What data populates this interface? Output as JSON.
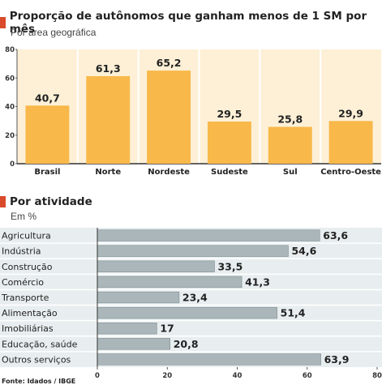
{
  "chart_data": [
    {
      "type": "bar",
      "title": "Proporção de autônomos que ganham menos de 1 SM por mês",
      "subtitle": "Por área geográfica",
      "categories": [
        "Brasil",
        "Norte",
        "Nordeste",
        "Sudeste",
        "Sul",
        "Centro-Oeste"
      ],
      "values": [
        40.7,
        61.3,
        65.2,
        29.5,
        25.8,
        29.9
      ],
      "value_labels": [
        "40,7",
        "61,3",
        "65,2",
        "29,5",
        "25,8",
        "29,9"
      ],
      "ylim": [
        0,
        80
      ],
      "yticks": [
        0,
        20,
        40,
        60,
        80
      ],
      "grid": "vertical separators",
      "bar_color": "#f8b84a",
      "background_color": "#fdf0d6"
    },
    {
      "type": "bar",
      "orientation": "horizontal",
      "title": "Por atividade",
      "subtitle": "Em %",
      "categories": [
        "Agricultura",
        "Indústria",
        "Construção",
        "Comércio",
        "Transporte",
        "Alimentação",
        "Imobiliárias",
        "Educação, saúde",
        "Outros serviços"
      ],
      "values": [
        63.6,
        54.6,
        33.5,
        41.3,
        23.4,
        51.4,
        17,
        20.8,
        63.9
      ],
      "value_labels": [
        "63,6",
        "54,6",
        "33,5",
        "41,3",
        "23,4",
        "51,4",
        "17",
        "20,8",
        "63,9"
      ],
      "xlim": [
        0,
        80
      ],
      "xticks": [
        0,
        20,
        40,
        60,
        80
      ],
      "bar_color": "#aab6ba",
      "background_color": "#e8eeef"
    }
  ],
  "source": "Fonte: Idados / IBGE"
}
